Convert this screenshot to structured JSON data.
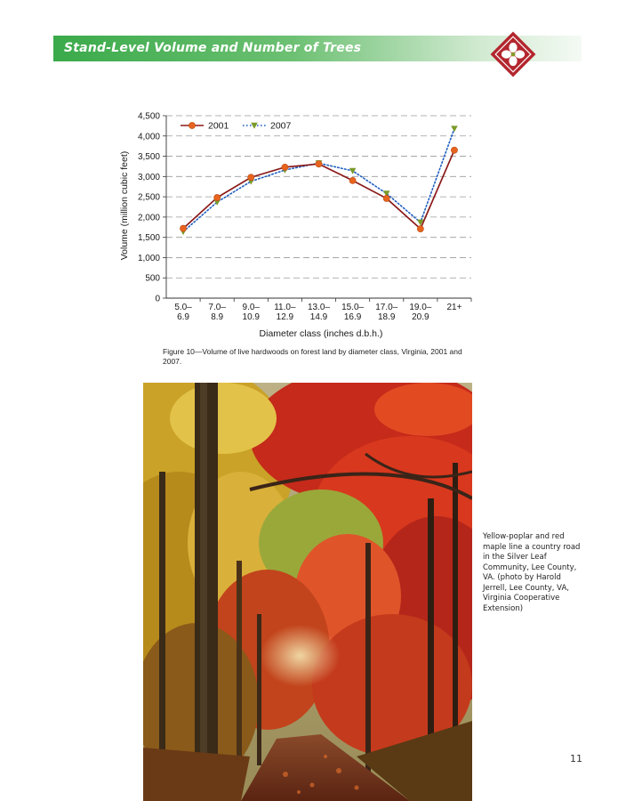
{
  "header": {
    "title": "Stand-Level Volume and Number of Trees",
    "logo_icon": "dogwood-flower-diamond-icon",
    "band_color": "#3aaa4a",
    "logo_color": "#b3262e"
  },
  "chart_data": {
    "type": "line",
    "categories": [
      "5.0–\n6.9",
      "7.0–\n8.9",
      "9.0–\n10.9",
      "11.0–\n12.9",
      "13.0–\n14.9",
      "15.0–\n16.9",
      "17.0–\n18.9",
      "19.0–\n20.9",
      "21+"
    ],
    "series": [
      {
        "name": "2001",
        "values": [
          1720,
          2480,
          2980,
          3230,
          3310,
          2900,
          2460,
          1710,
          3650
        ],
        "color": "#e8641e",
        "line_color": "#8b1a1a",
        "marker": "circle",
        "style": "solid"
      },
      {
        "name": "2007",
        "values": [
          1640,
          2370,
          2880,
          3160,
          3330,
          3140,
          2580,
          1870,
          4180
        ],
        "color": "#7a9a2a",
        "line_color": "#1f5fbf",
        "marker": "triangle-down",
        "style": "dotted"
      }
    ],
    "xlabel": "Diameter class (inches d.b.h.)",
    "ylabel": "Volume (million cubic feet)",
    "ylim": [
      0,
      4500
    ],
    "yticks": [
      0,
      500,
      1000,
      1500,
      2000,
      2500,
      3000,
      3500,
      4000,
      4500
    ],
    "ytick_labels": [
      "0",
      "500",
      "1,000",
      "1,500",
      "2,000",
      "2,500",
      "3,000",
      "3,500",
      "4,000",
      "4,500"
    ],
    "grid": true,
    "legend": "top-left"
  },
  "figure_caption": "Figure 10—Volume of live hardwoods on forest land by diameter class, Virginia, 2001 and 2007.",
  "photo": {
    "caption": "Yellow-poplar and red maple line a country road in the Silver Leaf Community, Lee County, VA. (photo by Harold Jerrell, Lee County, VA, Virginia Cooperative Extension)"
  },
  "page_number": "11"
}
